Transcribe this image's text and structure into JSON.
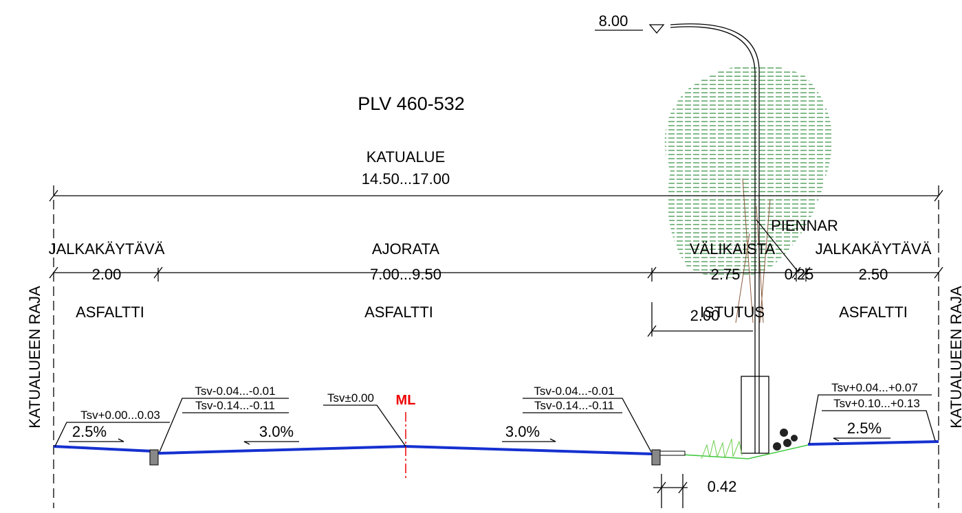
{
  "title": "PLV 460-532",
  "elevation": "8.00",
  "overall": {
    "label": "KATUALUE",
    "width": "14.50...17.00"
  },
  "boundary": [
    "KATUALUEEN RAJA",
    "KATUALUEEN RAJA"
  ],
  "sections": [
    {
      "name": "JALKAKÄYTÄVÄ",
      "width": "2.00",
      "surface": "ASFALTTI"
    },
    {
      "name": "AJORATA",
      "width": "7.00...9.50",
      "surface": "ASFALTTI"
    },
    {
      "name": "VÄLIKAISTA",
      "width": "2.75",
      "surface": "ISTUTUS"
    },
    {
      "name": "PIENNAR",
      "width": "0.25"
    },
    {
      "name": "JALKAKÄYTÄVÄ",
      "width": "2.50",
      "surface": "ASFALTTI"
    }
  ],
  "tree_offset": "2.00",
  "centerline": "ML",
  "levels": [
    "Tsv+0.00...0.03",
    "Tsv-0.04...-0.01",
    "Tsv-0.14...-0.11",
    "Tsv±0.00",
    "Tsv-0.04...-0.01",
    "Tsv-0.14...-0.11",
    "Tsv+0.04...+0.07",
    "Tsv+0.10...+0.13"
  ],
  "slopes": [
    "2.5%",
    "3.0%",
    "3.0%",
    "2.5%"
  ],
  "gutter_width": "0.42"
}
